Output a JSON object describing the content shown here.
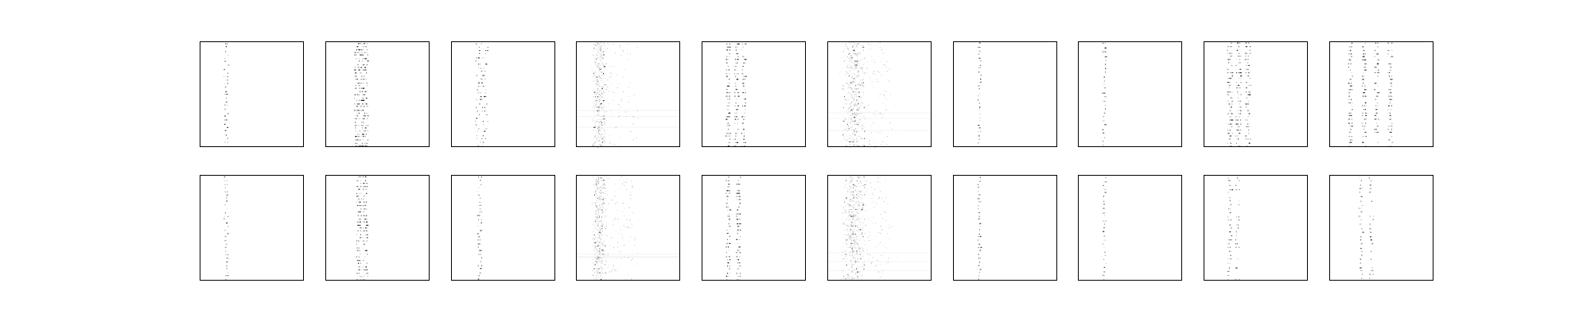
{
  "chart_data": {
    "type": "heatmap",
    "rows": 2,
    "cols": 10,
    "colormap": "gray_r",
    "axes_visible": false,
    "frame_color": "#000000",
    "background": "#ffffff",
    "panels": [
      {
        "row": 0,
        "col": 0,
        "style": "sparse",
        "columns": [
          0.25
        ],
        "spread": 0.02,
        "activity": 0.55
      },
      {
        "row": 0,
        "col": 1,
        "style": "multi",
        "columns": [
          0.3,
          0.34,
          0.38
        ],
        "spread": 0.025,
        "activity": 0.85
      },
      {
        "row": 0,
        "col": 2,
        "style": "sparse",
        "columns": [
          0.26,
          0.32
        ],
        "spread": 0.03,
        "activity": 0.6
      },
      {
        "row": 0,
        "col": 3,
        "style": "noise",
        "columns": [
          0.22
        ],
        "spread": 0.06,
        "activity": 0.5
      },
      {
        "row": 0,
        "col": 4,
        "style": "multi",
        "columns": [
          0.25,
          0.33,
          0.4
        ],
        "spread": 0.02,
        "activity": 0.7
      },
      {
        "row": 0,
        "col": 5,
        "style": "noise",
        "columns": [
          0.22,
          0.28
        ],
        "spread": 0.08,
        "activity": 0.6
      },
      {
        "row": 0,
        "col": 6,
        "style": "sparse",
        "columns": [
          0.25
        ],
        "spread": 0.015,
        "activity": 0.6
      },
      {
        "row": 0,
        "col": 7,
        "style": "sparse",
        "columns": [
          0.25
        ],
        "spread": 0.015,
        "activity": 0.4
      },
      {
        "row": 0,
        "col": 8,
        "style": "multi",
        "columns": [
          0.25,
          0.33,
          0.42
        ],
        "spread": 0.025,
        "activity": 0.75
      },
      {
        "row": 0,
        "col": 9,
        "style": "multi",
        "columns": [
          0.2,
          0.33,
          0.45,
          0.58
        ],
        "spread": 0.02,
        "activity": 0.7
      },
      {
        "row": 1,
        "col": 0,
        "style": "sparse",
        "columns": [
          0.25
        ],
        "spread": 0.02,
        "activity": 0.6
      },
      {
        "row": 1,
        "col": 1,
        "style": "multi",
        "columns": [
          0.32,
          0.38
        ],
        "spread": 0.025,
        "activity": 0.75
      },
      {
        "row": 1,
        "col": 2,
        "style": "sparse",
        "columns": [
          0.27
        ],
        "spread": 0.02,
        "activity": 0.6
      },
      {
        "row": 1,
        "col": 3,
        "style": "noise",
        "columns": [
          0.22
        ],
        "spread": 0.06,
        "activity": 0.55
      },
      {
        "row": 1,
        "col": 4,
        "style": "multi",
        "columns": [
          0.25,
          0.35
        ],
        "spread": 0.02,
        "activity": 0.7
      },
      {
        "row": 1,
        "col": 5,
        "style": "noise",
        "columns": [
          0.22,
          0.28
        ],
        "spread": 0.08,
        "activity": 0.6
      },
      {
        "row": 1,
        "col": 6,
        "style": "sparse",
        "columns": [
          0.25
        ],
        "spread": 0.015,
        "activity": 0.6
      },
      {
        "row": 1,
        "col": 7,
        "style": "sparse",
        "columns": [
          0.25
        ],
        "spread": 0.015,
        "activity": 0.45
      },
      {
        "row": 1,
        "col": 8,
        "style": "sparse",
        "columns": [
          0.25,
          0.32
        ],
        "spread": 0.02,
        "activity": 0.45
      },
      {
        "row": 1,
        "col": 9,
        "style": "sparse",
        "columns": [
          0.3,
          0.4
        ],
        "spread": 0.02,
        "activity": 0.45
      }
    ]
  }
}
